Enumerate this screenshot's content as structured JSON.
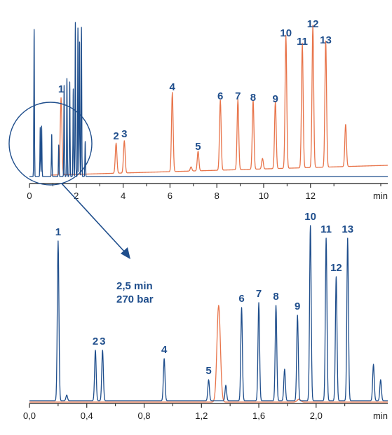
{
  "colors": {
    "blue": "#1f4e8c",
    "orange": "#e8744a",
    "axis": "#1a1a1a"
  },
  "annotation": {
    "line1": "2,5 min",
    "line2": "270 bar"
  },
  "chart_data": [
    {
      "type": "line",
      "xlabel": "min",
      "xlim": [
        0,
        15.3
      ],
      "x_ticks": [
        0,
        2,
        4,
        6,
        8,
        10,
        12
      ],
      "x_tick_labels": [
        "0",
        "2",
        "4",
        "6",
        "8",
        "10",
        "12"
      ],
      "series": [
        {
          "color": "orange",
          "baseline": 2,
          "peaks": [
            {
              "label": "1",
              "x": 1.35,
              "y": 110
            },
            {
              "label": "2",
              "x": 3.7,
              "y": 43
            },
            {
              "label": "3",
              "x": 4.05,
              "y": 46
            },
            {
              "label": "4",
              "x": 6.1,
              "y": 113
            },
            {
              "label": "5",
              "x": 7.2,
              "y": 28
            },
            {
              "label": "6",
              "x": 8.15,
              "y": 100
            },
            {
              "label": "7",
              "x": 8.9,
              "y": 100
            },
            {
              "label": "8",
              "x": 9.55,
              "y": 98
            },
            {
              "label": "9",
              "x": 10.5,
              "y": 96
            },
            {
              "label": "10",
              "x": 10.95,
              "y": 190
            },
            {
              "label": "11",
              "x": 11.65,
              "y": 178
            },
            {
              "label": "12",
              "x": 12.1,
              "y": 203
            },
            {
              "label": "13",
              "x": 12.65,
              "y": 180
            },
            {
              "label": "",
              "x": 13.5,
              "y": 60
            },
            {
              "label": "",
              "x": 9.95,
              "y": 15
            },
            {
              "label": "",
              "x": 6.9,
              "y": 6
            }
          ]
        },
        {
          "color": "blue",
          "baseline": 0,
          "peaks": [
            {
              "label": "",
              "x": 0.2,
              "y": 210
            },
            {
              "label": "",
              "x": 0.46,
              "y": 70
            },
            {
              "label": "",
              "x": 0.52,
              "y": 72
            },
            {
              "label": "",
              "x": 0.95,
              "y": 60
            },
            {
              "label": "",
              "x": 1.25,
              "y": 45
            },
            {
              "label": "",
              "x": 1.48,
              "y": 130
            },
            {
              "label": "",
              "x": 1.6,
              "y": 140
            },
            {
              "label": "",
              "x": 1.72,
              "y": 135
            },
            {
              "label": "",
              "x": 1.87,
              "y": 125
            },
            {
              "label": "",
              "x": 1.96,
              "y": 220
            },
            {
              "label": "",
              "x": 2.07,
              "y": 212
            },
            {
              "label": "",
              "x": 2.14,
              "y": 192
            },
            {
              "label": "",
              "x": 2.22,
              "y": 213
            },
            {
              "label": "",
              "x": 2.38,
              "y": 50
            }
          ]
        }
      ]
    },
    {
      "type": "line",
      "xlabel": "min",
      "xlim": [
        0,
        2.5
      ],
      "x_ticks": [
        0,
        0.4,
        0.8,
        1.2,
        1.6,
        2.0
      ],
      "x_tick_labels": [
        "0,0",
        "0,4",
        "0,8",
        "1,2",
        "1,6",
        "2,0"
      ],
      "series": [
        {
          "color": "blue",
          "baseline": 2,
          "peaks": [
            {
              "label": "1",
              "x": 0.2,
              "y": 228
            },
            {
              "label": "2",
              "x": 0.46,
              "y": 72
            },
            {
              "label": "3",
              "x": 0.51,
              "y": 72
            },
            {
              "label": "4",
              "x": 0.94,
              "y": 60
            },
            {
              "label": "5",
              "x": 1.25,
              "y": 30
            },
            {
              "label": "6",
              "x": 1.48,
              "y": 133
            },
            {
              "label": "7",
              "x": 1.6,
              "y": 140
            },
            {
              "label": "8",
              "x": 1.72,
              "y": 136
            },
            {
              "label": "9",
              "x": 1.87,
              "y": 122
            },
            {
              "label": "10",
              "x": 1.96,
              "y": 250
            },
            {
              "label": "11",
              "x": 2.07,
              "y": 232
            },
            {
              "label": "12",
              "x": 2.14,
              "y": 177
            },
            {
              "label": "13",
              "x": 2.22,
              "y": 232
            },
            {
              "label": "",
              "x": 1.78,
              "y": 45
            },
            {
              "label": "",
              "x": 1.37,
              "y": 22
            },
            {
              "label": "",
              "x": 2.4,
              "y": 52
            },
            {
              "label": "",
              "x": 2.45,
              "y": 30
            },
            {
              "label": "",
              "x": 0.26,
              "y": 8
            }
          ]
        },
        {
          "color": "orange",
          "baseline": 0,
          "peaks": [
            {
              "label": "",
              "x": 1.32,
              "y": 138
            },
            {
              "label": "",
              "x": 1.88,
              "y": 4
            }
          ]
        }
      ]
    }
  ]
}
